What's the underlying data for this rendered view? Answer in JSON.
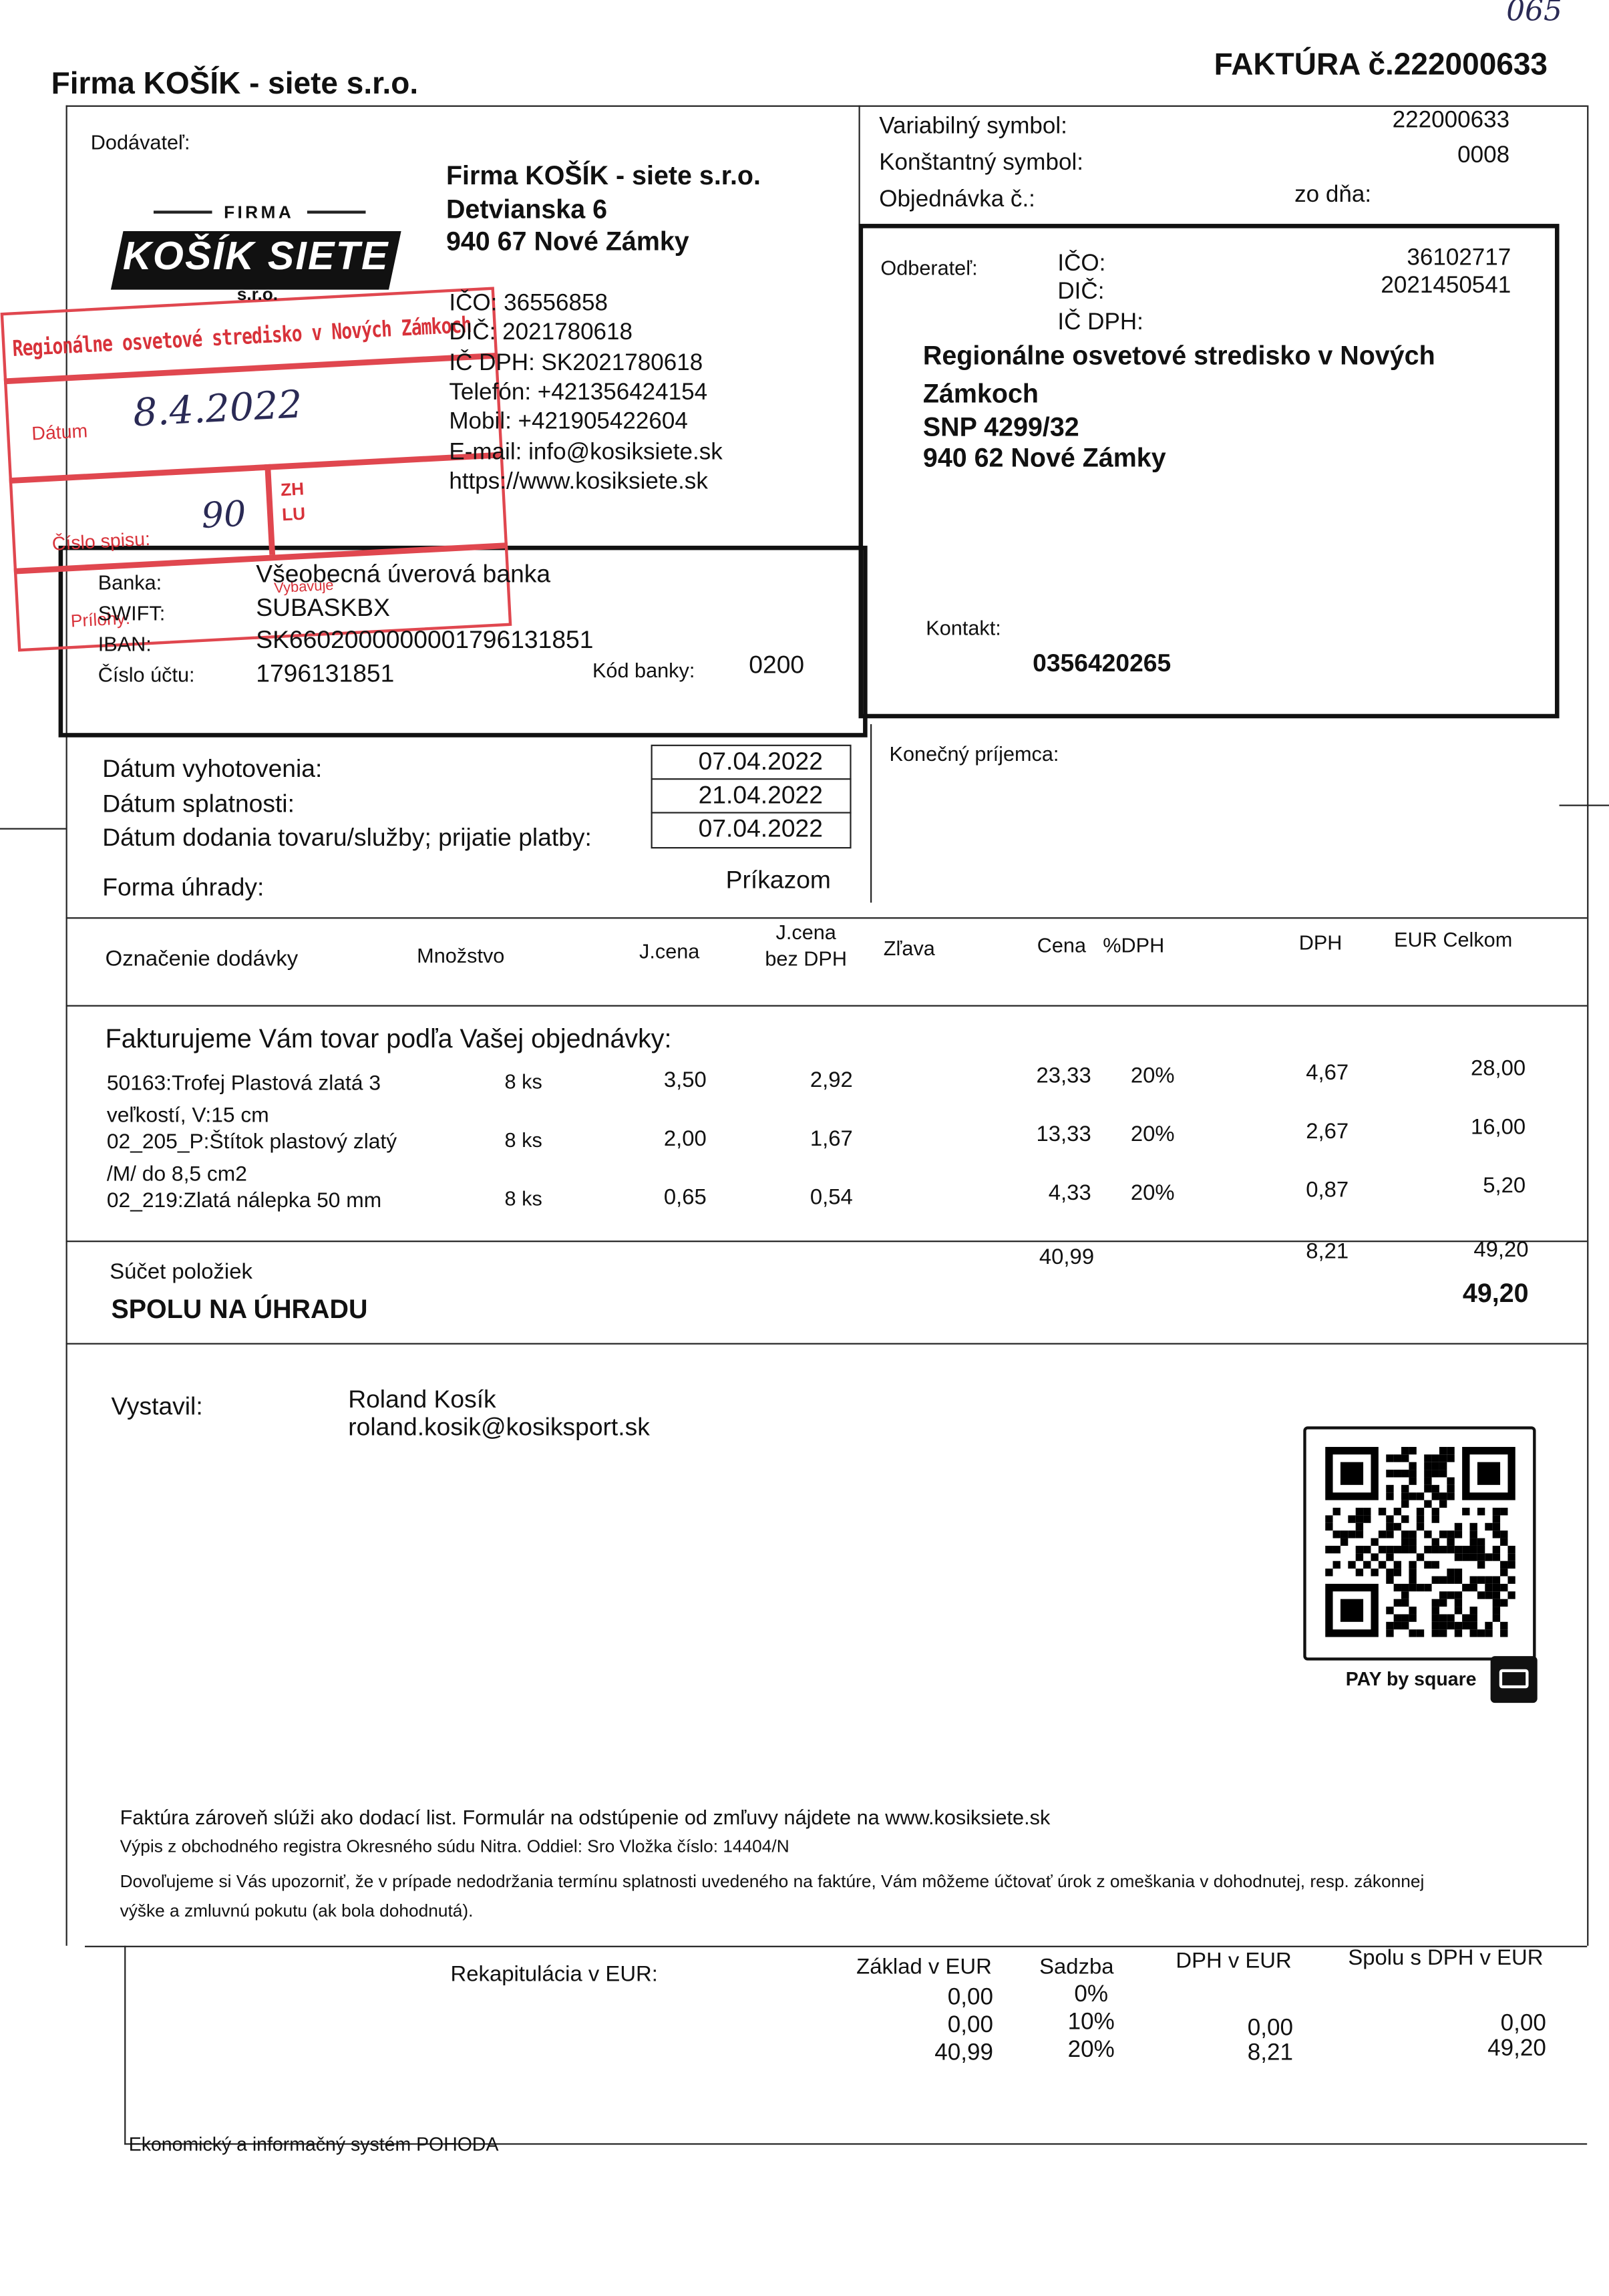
{
  "header": {
    "company": "Firma KOŠÍK - siete s.r.o.",
    "invoice_title": "FAKTÚRA č.222000633",
    "handwritten_note": "065"
  },
  "supplier": {
    "label": "Dodávateľ:",
    "logo": [
      "FIRMA",
      "KOŠÍK SIETE",
      "s.r.o."
    ],
    "name": "Firma KOŠÍK - siete s.r.o.",
    "street": "Detvianska 6",
    "city": "940 67 Nové Zámky",
    "ico": "IČO: 36556858",
    "dic": "DIČ: 2021780618",
    "ic_dph": "IČ DPH: SK2021780618",
    "phone": "Telefón: +421356424154",
    "mobile": "Mobil: +421905422604",
    "email": "E-mail: info@kosiksiete.sk",
    "web": "https://www.kosiksiete.sk"
  },
  "stamp": {
    "organization": "Regionálne osvetové stredisko v Nových Zámkoch",
    "date_label": "Dátum",
    "date": "8.4.2022",
    "file_label": "Číslo spisu:",
    "file_number": "90",
    "codes": [
      "ZH",
      "LU"
    ],
    "attachments_label": "Prílohy:",
    "handler_label": "Vybavuje"
  },
  "symbols": {
    "rows": [
      {
        "label": "Variabilný symbol:",
        "value": "222000633"
      },
      {
        "label": "Konštantný symbol:",
        "value": "0008"
      }
    ],
    "order_label": "Objednávka č.:",
    "order_date_label": "zo dňa:"
  },
  "customer": {
    "label": "Odberateľ:",
    "ico_label": "IČO:",
    "ico": "36102717",
    "dic_label": "DIČ:",
    "dic": "2021450541",
    "ic_dph_label": "IČ DPH:",
    "name": [
      "Regionálne osvetové stredisko v Nových",
      "Zámkoch"
    ],
    "street": "SNP 4299/32",
    "city": "940 62 Nové Zámky",
    "contact_label": "Kontakt:",
    "contact": "0356420265"
  },
  "bank": {
    "rows": [
      {
        "label": "Banka:",
        "value": "Všeobecná úverová banka"
      },
      {
        "label": "SWIFT:",
        "value": "SUBASKBX"
      },
      {
        "label": "IBAN:",
        "value": "SK6602000000001796131851"
      },
      {
        "label": "Číslo účtu:",
        "value": "1796131851"
      }
    ],
    "code_label": "Kód banky:",
    "code": "0200"
  },
  "dates": {
    "rows": [
      {
        "label": "Dátum vyhotovenia:",
        "value": "07.04.2022"
      },
      {
        "label": "Dátum splatnosti:",
        "value": "21.04.2022"
      },
      {
        "label": "Dátum dodania tovaru/služby; prijatie platby:",
        "value": "07.04.2022"
      }
    ],
    "payment_label": "Forma úhrady:",
    "payment": "Príkazom",
    "final_recipient_label": "Konečný príjemca:"
  },
  "items": {
    "columns": [
      "Označenie dodávky",
      "Množstvo",
      "J.cena",
      [
        "J.cena",
        "bez DPH"
      ],
      "Zľava",
      "Cena",
      "%DPH",
      "DPH",
      "EUR Celkom"
    ],
    "intro": "Fakturujeme Vám tovar podľa Vašej objednávky:",
    "rows": [
      {
        "name": [
          "50163:Trofej Plastová zlatá 3",
          "veľkostí, V:15 cm"
        ],
        "quantity": "8 ks",
        "unit_price": "3,50",
        "unit_price_net": "2,92",
        "base": "23,33",
        "vat_rate": "20%",
        "vat": "4,67",
        "total": "28,00"
      },
      {
        "name": [
          "02_205_P:Štítok plastový zlatý",
          "/M/ do 8,5 cm2"
        ],
        "quantity": "8 ks",
        "unit_price": "2,00",
        "unit_price_net": "1,67",
        "base": "13,33",
        "vat_rate": "20%",
        "vat": "2,67",
        "total": "16,00"
      },
      {
        "name": [
          "02_219:Zlatá nálepka 50 mm"
        ],
        "quantity": "8 ks",
        "unit_price": "0,65",
        "unit_price_net": "0,54",
        "base": "4,33",
        "vat_rate": "20%",
        "vat": "0,87",
        "total": "5,20"
      }
    ]
  },
  "totals": {
    "label": "Súčet položiek",
    "base": "40,99",
    "vat": "8,21",
    "total": "49,20",
    "pay_label": "SPOLU NA ÚHRADU",
    "pay_total": "49,20"
  },
  "issuer": {
    "label": "Vystavil:",
    "name": "Roland Kosík",
    "email": "roland.kosik@kosiksport.sk"
  },
  "qr": {
    "caption": "PAY by square"
  },
  "notes": [
    "Faktúra zároveň slúži ako dodací list. Formulár na odstúpenie od zmľuvy nájdete na www.kosiksiete.sk",
    "Výpis z obchodného registra Okresného súdu Nitra. Oddiel: Sro   Vložka číslo: 14404/N",
    "Dovoľujeme si Vás upozorniť, že v prípade nedodržania termínu splatnosti uvedeného na faktúre, Vám môžeme účtovať úrok z omeškania v dohodnutej, resp. zákonnej",
    "výške a zmluvnú pokutu (ak bola dohodnutá)."
  ],
  "recap": {
    "title": "Rekapitulácia v EUR:",
    "columns": [
      "Základ v EUR",
      "Sadzba",
      "DPH v EUR",
      "Spolu s DPH v EUR"
    ],
    "rows": [
      {
        "base": "0,00",
        "rate": "0%"
      },
      {
        "base": "0,00",
        "rate": "10%",
        "vat": "0,00",
        "total": "0,00"
      },
      {
        "base": "40,99",
        "rate": "20%",
        "vat": "8,21",
        "total": "49,20"
      }
    ]
  },
  "system": "Ekonomický a informačný systém POHODA"
}
